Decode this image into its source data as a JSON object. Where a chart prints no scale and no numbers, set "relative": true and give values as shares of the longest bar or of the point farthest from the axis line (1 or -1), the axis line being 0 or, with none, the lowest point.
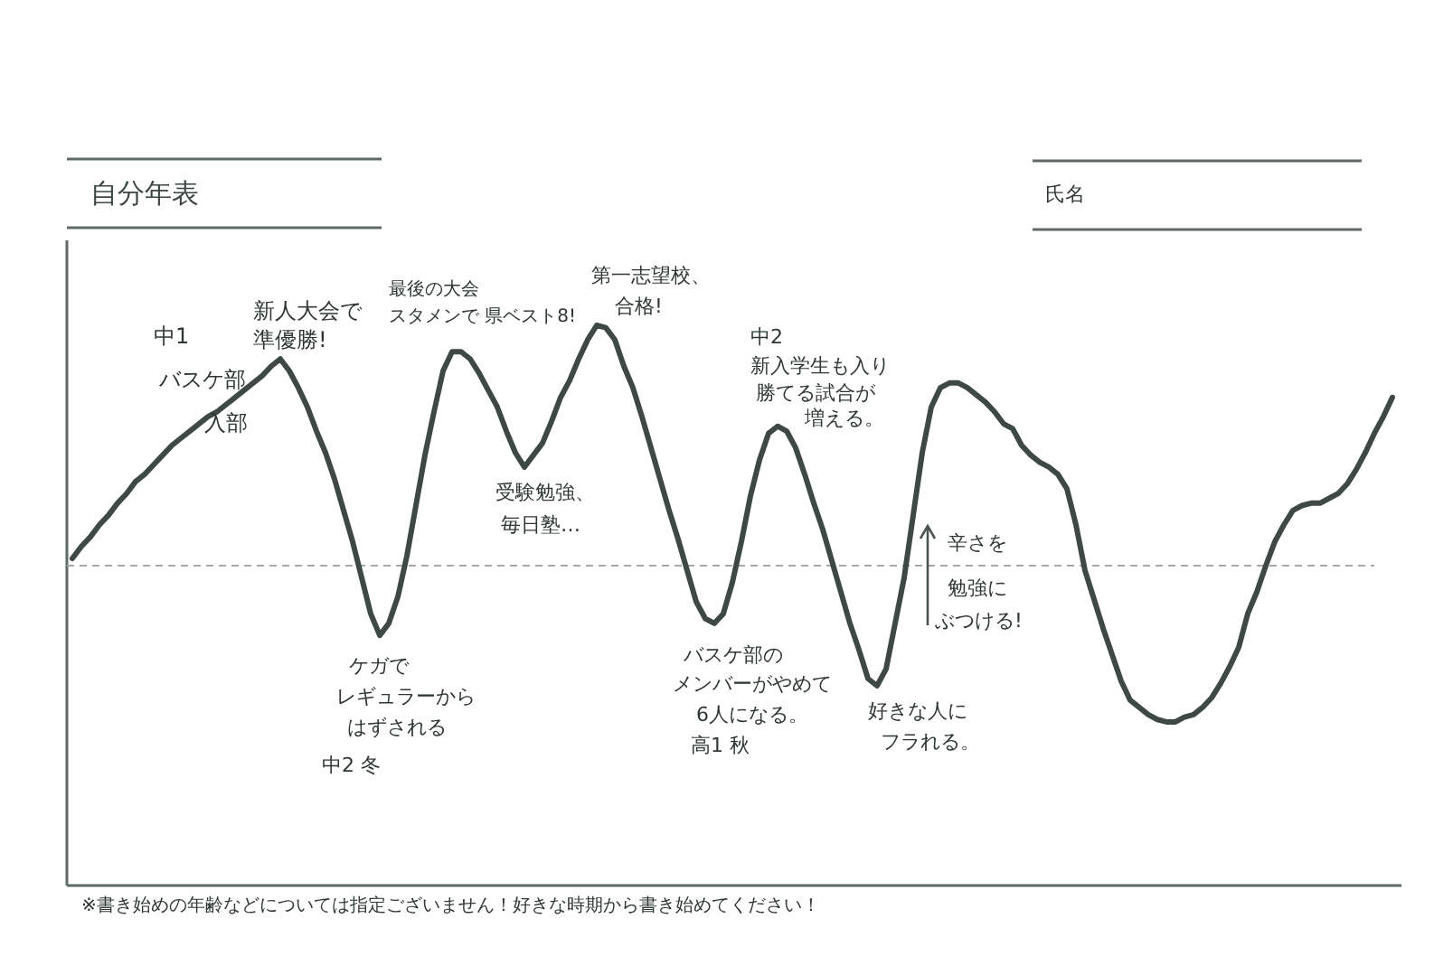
{
  "chart_data": {
    "type": "line",
    "title": "自分年表",
    "relative": true,
    "categories": [
      null,
      null,
      null,
      null,
      null,
      null,
      null,
      null,
      null,
      null,
      null,
      null,
      null,
      null,
      null,
      null,
      null,
      null,
      null,
      null,
      null,
      null,
      null,
      null,
      null,
      null,
      null,
      null,
      null,
      null,
      null,
      null,
      null,
      null,
      null,
      null,
      null,
      null,
      null,
      null,
      null,
      null,
      null,
      null,
      null,
      null,
      null,
      null,
      null,
      null,
      null,
      null,
      null,
      null,
      null,
      null,
      null,
      null,
      null,
      null,
      null,
      null,
      null,
      null,
      null,
      null,
      null,
      null,
      null,
      null,
      null,
      null,
      null,
      null,
      null,
      null,
      null,
      null,
      null,
      null,
      null,
      null,
      null,
      null,
      null,
      null,
      null,
      null,
      null,
      null,
      null,
      null,
      null,
      null,
      null,
      null,
      null,
      null,
      null,
      null,
      null,
      null,
      null,
      null,
      null,
      null,
      null,
      null,
      null,
      null,
      null,
      null,
      null,
      null,
      null,
      null,
      null,
      null,
      null,
      null,
      null,
      null,
      null,
      null,
      null,
      null,
      null,
      null,
      null,
      null,
      null,
      null,
      null,
      null,
      null,
      null,
      null,
      null,
      null,
      null,
      null,
      null,
      null,
      null,
      null,
      null,
      null
    ],
    "series": [
      {
        "color": "#3e4946",
        "line_style": "solid",
        "values": [
          0.03,
          0.08,
          0.12,
          0.17,
          0.21,
          0.26,
          0.3,
          0.35,
          0.38,
          0.42,
          0.46,
          0.5,
          0.53,
          0.56,
          0.59,
          0.62,
          0.64,
          0.67,
          0.7,
          0.73,
          0.76,
          0.79,
          0.83,
          0.86,
          0.81,
          0.74,
          0.66,
          0.56,
          0.47,
          0.36,
          0.23,
          0.1,
          -0.05,
          -0.2,
          -0.29,
          -0.24,
          -0.13,
          0.04,
          0.25,
          0.46,
          0.64,
          0.81,
          0.89,
          0.89,
          0.86,
          0.8,
          0.73,
          0.66,
          0.56,
          0.47,
          0.41,
          0.46,
          0.51,
          0.6,
          0.7,
          0.77,
          0.86,
          0.94,
          1.0,
          0.99,
          0.94,
          0.83,
          0.74,
          0.62,
          0.49,
          0.36,
          0.23,
          0.11,
          -0.02,
          -0.15,
          -0.22,
          -0.24,
          -0.2,
          -0.07,
          0.1,
          0.29,
          0.44,
          0.55,
          0.58,
          0.56,
          0.49,
          0.38,
          0.26,
          0.15,
          0.02,
          -0.11,
          -0.24,
          -0.35,
          -0.47,
          -0.5,
          -0.43,
          -0.24,
          -0.05,
          0.21,
          0.47,
          0.66,
          0.74,
          0.76,
          0.76,
          0.74,
          0.71,
          0.68,
          0.64,
          0.59,
          0.57,
          0.5,
          0.46,
          0.43,
          0.41,
          0.38,
          0.32,
          0.17,
          -0.02,
          -0.14,
          -0.26,
          -0.37,
          -0.48,
          -0.56,
          -0.59,
          -0.62,
          -0.64,
          -0.65,
          -0.65,
          -0.63,
          -0.62,
          -0.59,
          -0.55,
          -0.49,
          -0.42,
          -0.34,
          -0.2,
          -0.11,
          0.0,
          0.1,
          0.17,
          0.23,
          0.25,
          0.26,
          0.26,
          0.28,
          0.3,
          0.34,
          0.4,
          0.47,
          0.55,
          0.62,
          0.7
        ]
      }
    ],
    "ref_lines": [
      {
        "axis": "y",
        "value": 0,
        "color": "#a8a8a8",
        "line_style": "dashed"
      }
    ],
    "annotations": [
      "中1バスケ部入部",
      "新人大会で準優勝!",
      "ケガでレギュラーからはずされる中2 冬",
      "最後の大会スタメンで 県ベスト8!",
      "受験勉強、毎日塾…",
      "第一志望校、合格!",
      "バスケ部のメンバーがやめて6人になる。高1 秋",
      "中2新入学生も入り勝てる試合が増える。",
      "好きな人にフラれる。",
      "辛さを勉強にぶつける!",
      "氏名",
      "※書き始めの年齢などについては指定ございません！好きな時期から書き始めてください！"
    ]
  }
}
